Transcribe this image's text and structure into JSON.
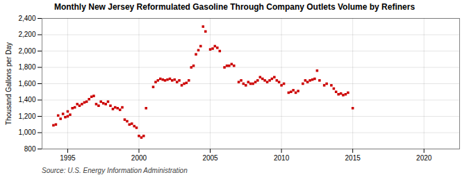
{
  "chart_data": {
    "type": "scatter",
    "title": "Monthly New Jersey Reformulated Gasoline Through Company Outlets Volume by Refiners",
    "ylabel": "Thousand Gallons per Day",
    "source": "Source: U.S. Energy Information Administration",
    "color": "#cc0000",
    "marker": "square",
    "grid": true,
    "xlim": [
      1993.2,
      2022.5
    ],
    "xticks": [
      1995,
      2000,
      2005,
      2010,
      2015,
      2020
    ],
    "ylim": [
      800,
      2400
    ],
    "yticks": [
      800,
      {
        "value": 1000,
        "label": "1,000"
      },
      {
        "value": 1200,
        "label": "1,200"
      },
      {
        "value": 1400,
        "label": "1,400"
      },
      {
        "value": 1600,
        "label": "1,600"
      },
      {
        "value": 1800,
        "label": "1,800"
      },
      {
        "value": 2000,
        "label": "2,000"
      },
      {
        "value": 2200,
        "label": "2,200"
      },
      {
        "value": 2400,
        "label": "2,400"
      }
    ],
    "x": [
      1994.0,
      1994.17,
      1994.33,
      1994.5,
      1994.67,
      1994.83,
      1995.0,
      1995.0,
      1995.17,
      1995.33,
      1995.5,
      1995.67,
      1995.83,
      1996.0,
      1996.17,
      1996.33,
      1996.5,
      1996.67,
      1996.83,
      1997.0,
      1997.17,
      1997.33,
      1997.5,
      1997.67,
      1997.83,
      1998.0,
      1998.17,
      1998.33,
      1998.5,
      1998.67,
      1998.83,
      1999.0,
      1999.17,
      1999.33,
      1999.5,
      1999.67,
      1999.83,
      2000.0,
      2000.17,
      2000.33,
      2000.5,
      2001.0,
      2001.17,
      2001.33,
      2001.5,
      2001.67,
      2001.83,
      2002.0,
      2002.17,
      2002.33,
      2002.5,
      2002.67,
      2002.83,
      2003.0,
      2003.17,
      2003.33,
      2003.5,
      2003.67,
      2003.83,
      2004.0,
      2004.17,
      2004.33,
      2004.5,
      2004.67,
      2005.0,
      2005.17,
      2005.33,
      2005.5,
      2005.67,
      2006.0,
      2006.17,
      2006.33,
      2006.5,
      2006.67,
      2007.0,
      2007.17,
      2007.33,
      2007.5,
      2007.67,
      2007.83,
      2008.0,
      2008.17,
      2008.33,
      2008.5,
      2008.67,
      2008.83,
      2009.0,
      2009.17,
      2009.33,
      2009.5,
      2009.67,
      2009.83,
      2010.0,
      2010.17,
      2010.5,
      2010.67,
      2010.83,
      2011.0,
      2011.17,
      2011.5,
      2011.67,
      2011.83,
      2012.0,
      2012.17,
      2012.33,
      2012.5,
      2012.67,
      2013.0,
      2013.17,
      2013.5,
      2013.67,
      2013.83,
      2014.0,
      2014.17,
      2014.33,
      2014.5,
      2014.67,
      2015.0
    ],
    "values": [
      1090,
      1100,
      1210,
      1170,
      1230,
      1190,
      1200,
      1260,
      1220,
      1300,
      1310,
      1350,
      1330,
      1350,
      1370,
      1380,
      1410,
      1440,
      1450,
      1350,
      1330,
      1380,
      1360,
      1350,
      1380,
      1330,
      1290,
      1310,
      1300,
      1280,
      1310,
      1160,
      1140,
      1100,
      1110,
      1080,
      1060,
      960,
      940,
      960,
      1300,
      1560,
      1620,
      1640,
      1660,
      1650,
      1640,
      1650,
      1660,
      1640,
      1650,
      1620,
      1640,
      1580,
      1600,
      1610,
      1640,
      1800,
      1820,
      1960,
      2010,
      2060,
      2300,
      2240,
      2020,
      2030,
      2060,
      2040,
      2000,
      1800,
      1820,
      1820,
      1840,
      1820,
      1620,
      1640,
      1600,
      1580,
      1620,
      1600,
      1600,
      1620,
      1640,
      1680,
      1660,
      1640,
      1620,
      1640,
      1660,
      1680,
      1640,
      1620,
      1580,
      1600,
      1490,
      1500,
      1520,
      1490,
      1510,
      1600,
      1640,
      1620,
      1640,
      1650,
      1660,
      1760,
      1640,
      1580,
      1600,
      1580,
      1540,
      1500,
      1470,
      1480,
      1460,
      1470,
      1490,
      1300
    ]
  }
}
